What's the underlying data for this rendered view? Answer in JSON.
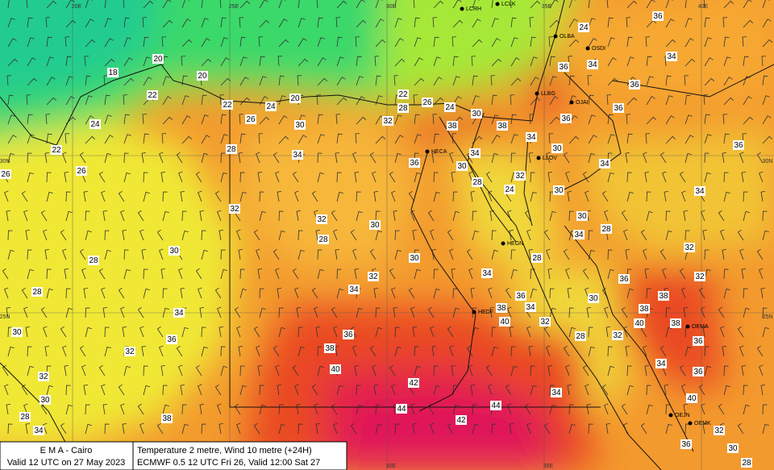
{
  "legend": {
    "left": [
      "E M A  -  Cairo",
      "Valid 12 UTC on 27 May 2023"
    ],
    "right": [
      "Temperature  2 metre, Wind  10 metre (+24H)",
      "ECMWF 0.5 12 UTC Fri 26, Valid 12:00 Sat 27"
    ]
  },
  "grid_labels": [
    "20E",
    "25E",
    "30E",
    "35E",
    "40E",
    "30N",
    "30N",
    "25N",
    "25N",
    "30E",
    "35E"
  ],
  "stations": [
    "LCRH",
    "LCLK",
    "OLBA",
    "OSDI",
    "LLBG",
    "OJAI",
    "HECA",
    "LLOV",
    "HEGN",
    "HEDF",
    "OEMA",
    "OEJN",
    "OEMK"
  ],
  "temperature_labels": [
    20,
    18,
    20,
    22,
    24,
    22,
    26,
    26,
    22,
    24,
    20,
    26,
    30,
    28,
    22,
    26,
    28,
    24,
    30,
    32,
    38,
    38,
    34,
    36,
    34,
    30,
    28,
    32,
    24,
    32,
    32,
    30,
    28,
    30,
    28,
    30,
    28,
    34,
    32,
    34,
    28,
    34,
    36,
    34,
    38,
    40,
    32,
    30,
    36,
    36,
    32,
    38,
    40,
    42,
    32,
    30,
    28,
    34,
    38,
    44,
    44,
    42,
    34,
    36,
    24,
    34,
    36,
    34,
    36,
    36,
    36,
    34,
    30,
    36,
    34,
    30,
    34,
    30,
    34,
    28,
    32,
    32,
    36,
    30,
    38,
    38,
    40,
    38,
    28,
    32,
    36,
    34,
    36,
    40,
    32,
    36,
    30,
    28
  ]
}
